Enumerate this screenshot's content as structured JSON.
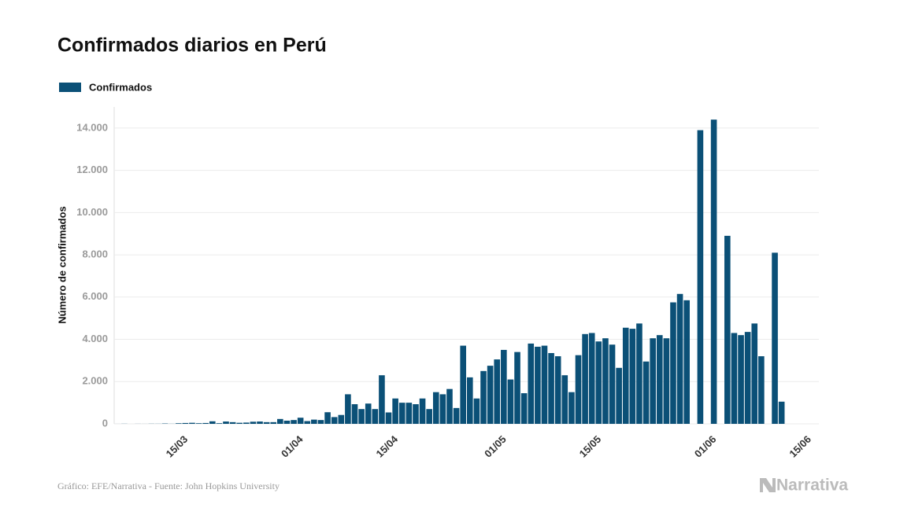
{
  "chart_data": {
    "type": "bar",
    "title": "Confirmados diarios en Perú",
    "y_label": "Número de confirmados",
    "source": "Gráfico: EFE/Narrativa - Fuente: John Hopkins University",
    "brand": "Narrativa",
    "series": [
      {
        "name": "Confirmados",
        "color": "#0b5077",
        "values": [
          1,
          5,
          0,
          3,
          2,
          6,
          5,
          16,
          5,
          28,
          40,
          50,
          30,
          40,
          120,
          30,
          110,
          80,
          50,
          60,
          100,
          110,
          80,
          80,
          230,
          150,
          180,
          290,
          130,
          200,
          180,
          550,
          320,
          420,
          1400,
          930,
          700,
          960,
          700,
          2300,
          540,
          1200,
          1000,
          1000,
          930,
          1200,
          700,
          1500,
          1400,
          1650,
          750,
          3700,
          2200,
          1200,
          2500,
          2750,
          3050,
          3500,
          2100,
          3400,
          1450,
          3800,
          3650,
          3700,
          3350,
          3200,
          2300,
          1500,
          3250,
          4250,
          4300,
          3900,
          4050,
          3750,
          2650,
          4550,
          4500,
          4750,
          2950,
          4050,
          4200,
          4050,
          5750,
          6150,
          5850,
          0,
          13900,
          0,
          14400,
          0,
          8900,
          4300,
          4200,
          4350,
          4750,
          3200,
          0,
          8100,
          1050,
          0,
          0,
          0,
          0,
          0
        ]
      }
    ],
    "categories": [
      null,
      null,
      null,
      null,
      null,
      null,
      null,
      null,
      null,
      "15/03",
      null,
      null,
      null,
      null,
      null,
      null,
      null,
      null,
      null,
      null,
      null,
      null,
      null,
      null,
      null,
      null,
      "01/04",
      null,
      null,
      null,
      null,
      null,
      null,
      null,
      null,
      null,
      null,
      null,
      null,
      null,
      "15/04",
      null,
      null,
      null,
      null,
      null,
      null,
      null,
      null,
      null,
      null,
      null,
      null,
      null,
      null,
      null,
      "01/05",
      null,
      null,
      null,
      null,
      null,
      null,
      null,
      null,
      null,
      null,
      null,
      null,
      null,
      "15/05",
      null,
      null,
      null,
      null,
      null,
      null,
      null,
      null,
      null,
      null,
      null,
      null,
      null,
      null,
      null,
      null,
      "01/06",
      null,
      null,
      null,
      null,
      null,
      null,
      null,
      null,
      null,
      null,
      null,
      null,
      null,
      "15/06",
      null,
      null
    ],
    "ylim": [
      0,
      15000
    ],
    "yticks": [
      0,
      {
        "value": 2000,
        "label": "2.000"
      },
      {
        "value": 4000,
        "label": "4.000"
      },
      {
        "value": 6000,
        "label": "6.000"
      },
      {
        "value": 8000,
        "label": "8.000"
      },
      {
        "value": 10000,
        "label": "10.000"
      },
      {
        "value": 12000,
        "label": "12.000"
      },
      {
        "value": 14000,
        "label": "14.000"
      }
    ],
    "grid": true
  }
}
